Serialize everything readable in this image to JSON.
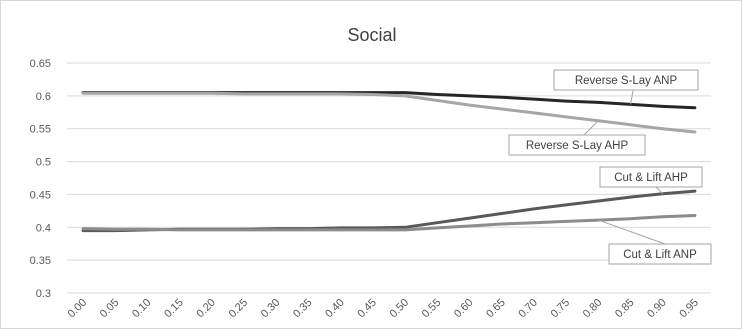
{
  "chart_data": {
    "type": "line",
    "title": "Social",
    "xlabel": "",
    "ylabel": "",
    "x": [
      "0.00",
      "0.05",
      "0.10",
      "0.15",
      "0.20",
      "0.25",
      "0.30",
      "0.35",
      "0.40",
      "0.45",
      "0.50",
      "0.55",
      "0.60",
      "0.65",
      "0.70",
      "0.75",
      "0.80",
      "0.85",
      "0.90",
      "0.95"
    ],
    "ylim": [
      0.3,
      0.65
    ],
    "yticks": [
      "0.3",
      "0.35",
      "0.4",
      "0.45",
      "0.5",
      "0.55",
      "0.6",
      "0.65"
    ],
    "grid": true,
    "series": [
      {
        "name": "Reverse S-Lay ANP",
        "color": "#262626",
        "values": [
          0.605,
          0.605,
          0.605,
          0.605,
          0.605,
          0.605,
          0.605,
          0.605,
          0.605,
          0.605,
          0.605,
          0.602,
          0.6,
          0.598,
          0.595,
          0.592,
          0.59,
          0.587,
          0.584,
          0.582
        ]
      },
      {
        "name": "Reverse S-Lay AHP",
        "color": "#a6a6a6",
        "values": [
          0.604,
          0.604,
          0.604,
          0.604,
          0.604,
          0.603,
          0.603,
          0.603,
          0.603,
          0.602,
          0.6,
          0.593,
          0.586,
          0.58,
          0.574,
          0.568,
          0.562,
          0.556,
          0.55,
          0.545
        ]
      },
      {
        "name": "Cut & Lift AHP",
        "color": "#595959",
        "values": [
          0.395,
          0.395,
          0.396,
          0.397,
          0.397,
          0.397,
          0.398,
          0.398,
          0.399,
          0.399,
          0.4,
          0.407,
          0.414,
          0.421,
          0.428,
          0.434,
          0.44,
          0.446,
          0.451,
          0.455
        ]
      },
      {
        "name": "Cut & Lift ANP",
        "color": "#8c8c8c",
        "values": [
          0.398,
          0.397,
          0.397,
          0.396,
          0.396,
          0.396,
          0.396,
          0.396,
          0.396,
          0.396,
          0.396,
          0.399,
          0.402,
          0.405,
          0.407,
          0.409,
          0.411,
          0.413,
          0.416,
          0.418
        ]
      }
    ]
  }
}
